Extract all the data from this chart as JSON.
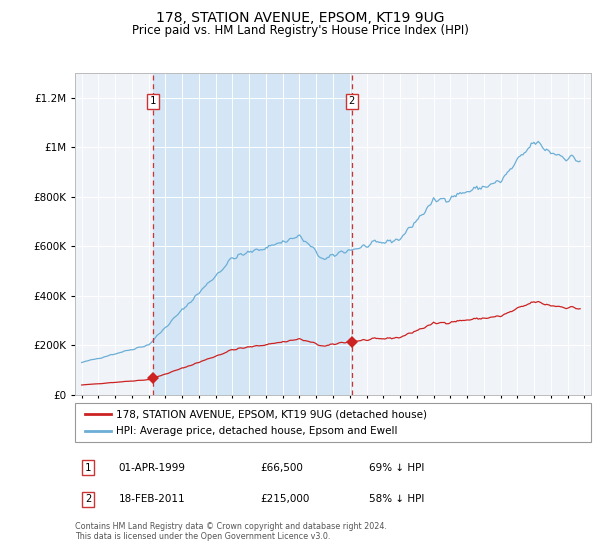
{
  "title": "178, STATION AVENUE, EPSOM, KT19 9UG",
  "subtitle": "Price paid vs. HM Land Registry's House Price Index (HPI)",
  "legend_label_red": "178, STATION AVENUE, EPSOM, KT19 9UG (detached house)",
  "legend_label_blue": "HPI: Average price, detached house, Epsom and Ewell",
  "footnote": "Contains HM Land Registry data © Crown copyright and database right 2024.\nThis data is licensed under the Open Government Licence v3.0.",
  "sale1_date_str": "01-APR-1999",
  "sale1_price_str": "£66,500",
  "sale1_hpi_str": "69% ↓ HPI",
  "sale1_year": 1999.25,
  "sale1_price": 66500,
  "sale2_date_str": "18-FEB-2011",
  "sale2_price_str": "£215,000",
  "sale2_hpi_str": "58% ↓ HPI",
  "sale2_year": 2011.125,
  "sale2_price": 215000,
  "hpi_color": "#6baed6",
  "price_color": "#cc2222",
  "vline_color": "#cc3333",
  "shade_color": "#d0e4f5",
  "background_color": "#f0f4f8",
  "grid_color": "#cccccc",
  "title_fontsize": 10,
  "subtitle_fontsize": 8.5
}
